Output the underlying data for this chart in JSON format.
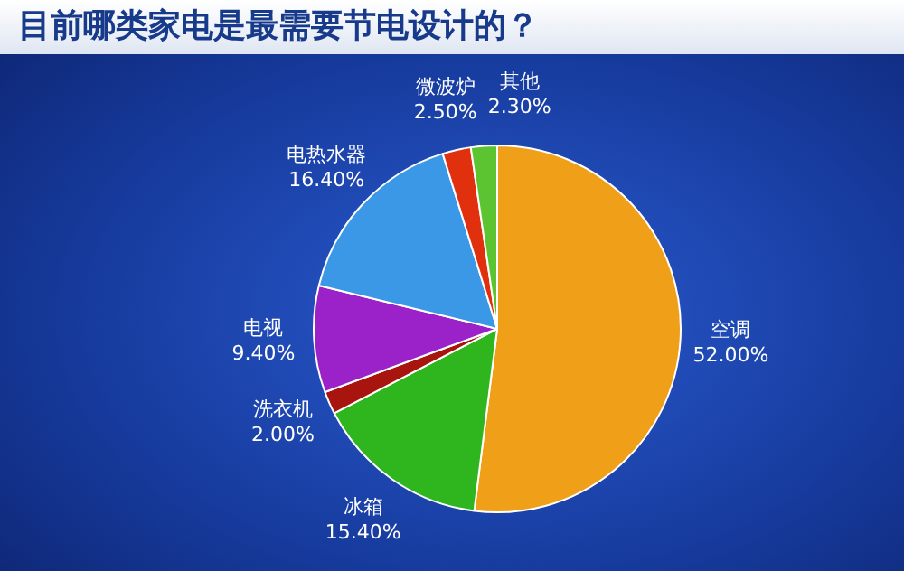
{
  "chart_data": {
    "type": "pie",
    "title": "目前哪类家电是最需要节电设计的？",
    "categories": [
      "空调",
      "冰箱",
      "洗衣机",
      "电视",
      "电热水器",
      "微波炉",
      "其他"
    ],
    "values": [
      52,
      15.4,
      2,
      9.4,
      16.4,
      2.5,
      2.3
    ],
    "value_labels": [
      "52.00%",
      "15.40%",
      "2.00%",
      "9.40%",
      "16.40%",
      "2.50%",
      "2.30%"
    ],
    "colors": [
      "#f0a018",
      "#2fb51e",
      "#a8140e",
      "#9a22c8",
      "#3a98e6",
      "#e0300e",
      "#5cc431"
    ],
    "legend": false
  }
}
